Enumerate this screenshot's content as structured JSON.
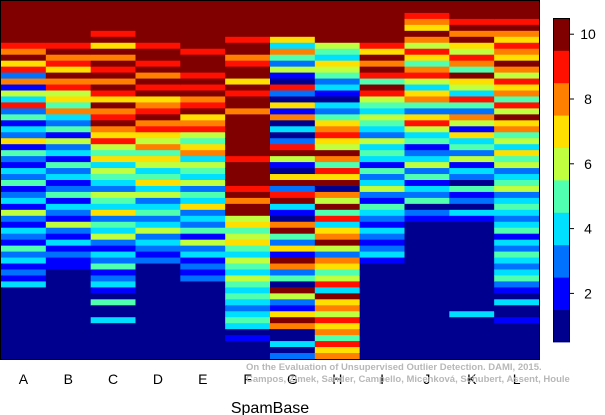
{
  "chart_data": {
    "type": "heatmap",
    "title": "",
    "xlabel": "SpamBase",
    "ylabel": "",
    "columns": [
      "A",
      "B",
      "C",
      "D",
      "E",
      "F",
      "G",
      "H",
      "I",
      "J",
      "K",
      "L"
    ],
    "colorbar": {
      "range": [
        0.5,
        10.5
      ],
      "ticks": [
        2,
        4,
        6,
        8,
        10
      ],
      "colors": [
        "#00008f",
        "#0000ff",
        "#0070ff",
        "#00dfff",
        "#50ffaf",
        "#bfff40",
        "#ffdf00",
        "#ff8000",
        "#ff1000",
        "#800000"
      ]
    },
    "rows_per_column": 60,
    "note": "Each column lists per-row level values (1-10), top row first.",
    "values": [
      [
        10,
        10,
        10,
        10,
        10,
        10,
        10,
        9,
        8,
        10,
        7,
        9,
        3,
        8,
        2,
        6,
        4,
        9,
        3,
        5,
        2,
        4,
        3,
        7,
        2,
        5,
        3,
        2,
        4,
        3,
        5,
        2,
        3,
        4,
        2,
        6,
        3,
        2,
        4,
        3,
        2,
        5,
        3,
        4,
        2,
        3,
        2,
        4,
        1,
        1,
        1,
        1,
        1,
        1,
        1,
        1,
        1,
        1,
        1,
        1
      ],
      [
        10,
        10,
        10,
        10,
        10,
        10,
        10,
        9,
        10,
        8,
        9,
        7,
        10,
        8,
        9,
        6,
        7,
        5,
        8,
        4,
        3,
        5,
        2,
        6,
        3,
        4,
        2,
        5,
        3,
        4,
        2,
        3,
        5,
        2,
        4,
        3,
        2,
        6,
        3,
        2,
        4,
        2,
        3,
        2,
        2,
        1,
        1,
        1,
        1,
        1,
        1,
        1,
        1,
        1,
        1,
        1,
        1,
        1,
        1,
        1
      ],
      [
        10,
        10,
        10,
        10,
        10,
        9,
        10,
        7,
        10,
        8,
        10,
        9,
        10,
        8,
        10,
        9,
        7,
        10,
        8,
        9,
        10,
        8,
        7,
        9,
        6,
        5,
        7,
        4,
        6,
        5,
        4,
        3,
        6,
        5,
        4,
        7,
        3,
        5,
        4,
        6,
        3,
        2,
        4,
        3,
        5,
        2,
        3,
        4,
        2,
        1,
        5,
        1,
        1,
        4,
        1,
        1,
        1,
        1,
        1,
        1
      ],
      [
        10,
        10,
        10,
        10,
        10,
        10,
        10,
        9,
        10,
        10,
        9,
        10,
        8,
        10,
        9,
        10,
        7,
        8,
        9,
        10,
        8,
        9,
        7,
        6,
        8,
        5,
        7,
        6,
        4,
        5,
        7,
        4,
        6,
        3,
        4,
        5,
        3,
        4,
        6,
        3,
        4,
        3,
        2,
        3,
        1,
        1,
        1,
        1,
        1,
        1,
        1,
        1,
        1,
        1,
        1,
        1,
        1,
        1,
        1,
        1
      ],
      [
        10,
        10,
        10,
        10,
        10,
        10,
        10,
        10,
        9,
        10,
        10,
        10,
        9,
        10,
        9,
        10,
        8,
        9,
        10,
        7,
        8,
        9,
        6,
        5,
        7,
        8,
        4,
        6,
        5,
        4,
        6,
        3,
        5,
        4,
        7,
        3,
        4,
        3,
        5,
        2,
        6,
        3,
        4,
        2,
        3,
        2,
        3,
        1,
        1,
        1,
        1,
        1,
        1,
        1,
        1,
        1,
        1,
        1,
        1,
        1
      ],
      [
        10,
        10,
        10,
        10,
        10,
        10,
        9,
        10,
        10,
        8,
        9,
        10,
        10,
        7,
        10,
        9,
        10,
        10,
        8,
        10,
        10,
        10,
        10,
        10,
        10,
        10,
        9,
        10,
        10,
        10,
        10,
        9,
        10,
        8,
        10,
        10,
        6,
        7,
        5,
        6,
        7,
        5,
        4,
        6,
        5,
        4,
        6,
        5,
        4,
        5,
        4,
        3,
        4,
        5,
        4,
        1,
        2,
        1,
        1,
        1
      ],
      [
        10,
        10,
        10,
        10,
        10,
        10,
        7,
        4,
        8,
        5,
        3,
        6,
        2,
        1,
        9,
        3,
        1,
        7,
        2,
        8,
        1,
        4,
        1,
        3,
        9,
        10,
        6,
        2,
        1,
        7,
        10,
        3,
        9,
        10,
        4,
        2,
        1,
        8,
        10,
        5,
        3,
        7,
        2,
        10,
        8,
        3,
        5,
        1,
        10,
        6,
        3,
        2,
        7,
        10,
        8,
        1,
        1,
        4,
        1,
        3
      ],
      [
        10,
        10,
        10,
        10,
        10,
        10,
        10,
        6,
        5,
        4,
        7,
        6,
        5,
        3,
        4,
        2,
        1,
        4,
        3,
        5,
        7,
        8,
        9,
        7,
        6,
        10,
        8,
        5,
        9,
        7,
        10,
        1,
        8,
        6,
        10,
        5,
        9,
        4,
        7,
        8,
        10,
        6,
        3,
        8,
        7,
        5,
        6,
        9,
        4,
        10,
        7,
        8,
        6,
        9,
        7,
        8,
        5,
        9,
        7,
        8
      ],
      [
        10,
        10,
        10,
        10,
        10,
        10,
        10,
        9,
        7,
        10,
        8,
        10,
        9,
        5,
        10,
        9,
        6,
        5,
        4,
        6,
        5,
        4,
        3,
        6,
        4,
        5,
        4,
        2,
        5,
        3,
        4,
        6,
        3,
        2,
        5,
        4,
        3,
        2,
        4,
        3,
        2,
        3,
        4,
        2,
        1,
        1,
        1,
        1,
        1,
        1,
        1,
        1,
        1,
        1,
        1,
        1,
        1,
        1,
        1,
        1
      ],
      [
        10,
        10,
        9,
        8,
        7,
        10,
        8,
        6,
        9,
        7,
        5,
        8,
        9,
        6,
        4,
        7,
        8,
        5,
        3,
        7,
        9,
        6,
        4,
        5,
        2,
        3,
        4,
        6,
        3,
        5,
        2,
        4,
        3,
        5,
        1,
        3,
        2,
        1,
        1,
        1,
        1,
        1,
        1,
        1,
        1,
        1,
        1,
        1,
        1,
        1,
        1,
        1,
        1,
        1,
        1,
        1,
        1,
        1,
        1,
        1
      ],
      [
        10,
        10,
        10,
        9,
        10,
        8,
        10,
        7,
        6,
        9,
        8,
        5,
        10,
        7,
        6,
        4,
        9,
        5,
        3,
        8,
        6,
        2,
        7,
        4,
        5,
        3,
        6,
        2,
        4,
        3,
        1,
        5,
        2,
        3,
        1,
        4,
        2,
        1,
        1,
        1,
        1,
        1,
        1,
        1,
        1,
        1,
        1,
        1,
        1,
        1,
        1,
        1,
        4,
        1,
        1,
        1,
        1,
        1,
        1,
        1
      ],
      [
        10,
        10,
        10,
        9,
        10,
        8,
        7,
        9,
        8,
        7,
        10,
        8,
        6,
        9,
        7,
        8,
        5,
        9,
        6,
        10,
        7,
        8,
        5,
        6,
        4,
        7,
        5,
        6,
        3,
        4,
        5,
        6,
        3,
        4,
        5,
        4,
        3,
        4,
        5,
        2,
        4,
        3,
        5,
        4,
        3,
        4,
        5,
        3,
        2,
        1,
        4,
        1,
        1,
        2,
        1,
        1,
        1,
        1,
        1,
        1
      ]
    ]
  }
}
